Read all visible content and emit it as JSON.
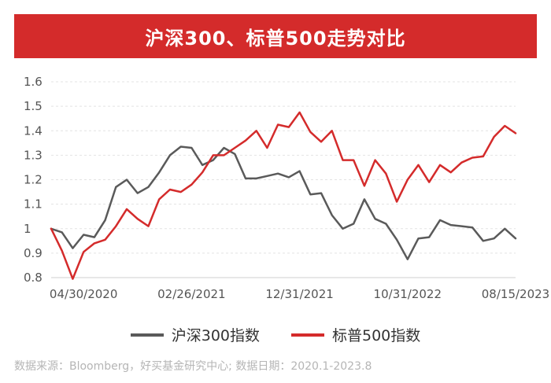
{
  "banner": {
    "title": "沪深300、标普500走势对比"
  },
  "source_note": "数据来源：Bloomberg，好买基金研究中心; 数据日期：2020.1-2023.8",
  "colors": {
    "csi300": "#5a5a5a",
    "sp500": "#d42b2b",
    "banner": "#d42b2b"
  },
  "chart_data": {
    "type": "line",
    "title": "沪深300、标普500走势对比",
    "ylim": [
      0.8,
      1.6
    ],
    "yticks": [
      "0.8",
      "0.9",
      "1",
      "1.1",
      "1.2",
      "1.3",
      "1.4",
      "1.5",
      "1.6"
    ],
    "x_tick_labels": [
      {
        "label": "04/30/2020",
        "index": 3
      },
      {
        "label": "02/26/2021",
        "index": 13
      },
      {
        "label": "12/31/2021",
        "index": 23
      },
      {
        "label": "10/31/2022",
        "index": 33
      },
      {
        "label": "08/15/2023",
        "index": 43
      }
    ],
    "grid": true,
    "legend_position": "bottom",
    "series": [
      {
        "name": "沪深300指数",
        "key": "csi300",
        "values": [
          1.0,
          0.985,
          0.92,
          0.975,
          0.965,
          1.035,
          1.17,
          1.2,
          1.145,
          1.17,
          1.23,
          1.3,
          1.335,
          1.33,
          1.26,
          1.28,
          1.33,
          1.305,
          1.205,
          1.205,
          1.215,
          1.225,
          1.21,
          1.235,
          1.14,
          1.145,
          1.055,
          1.0,
          1.02,
          1.12,
          1.04,
          1.02,
          0.955,
          0.875,
          0.96,
          0.965,
          1.035,
          1.015,
          1.01,
          1.005,
          0.95,
          0.96,
          1.0,
          0.96
        ]
      },
      {
        "name": "标普500指数",
        "key": "sp500",
        "values": [
          1.0,
          0.91,
          0.795,
          0.905,
          0.94,
          0.955,
          1.01,
          1.08,
          1.04,
          1.01,
          1.12,
          1.16,
          1.15,
          1.18,
          1.23,
          1.3,
          1.3,
          1.33,
          1.36,
          1.4,
          1.33,
          1.425,
          1.415,
          1.475,
          1.395,
          1.355,
          1.4,
          1.28,
          1.28,
          1.175,
          1.28,
          1.225,
          1.11,
          1.2,
          1.26,
          1.19,
          1.26,
          1.23,
          1.27,
          1.29,
          1.295,
          1.375,
          1.42,
          1.39
        ]
      }
    ]
  }
}
